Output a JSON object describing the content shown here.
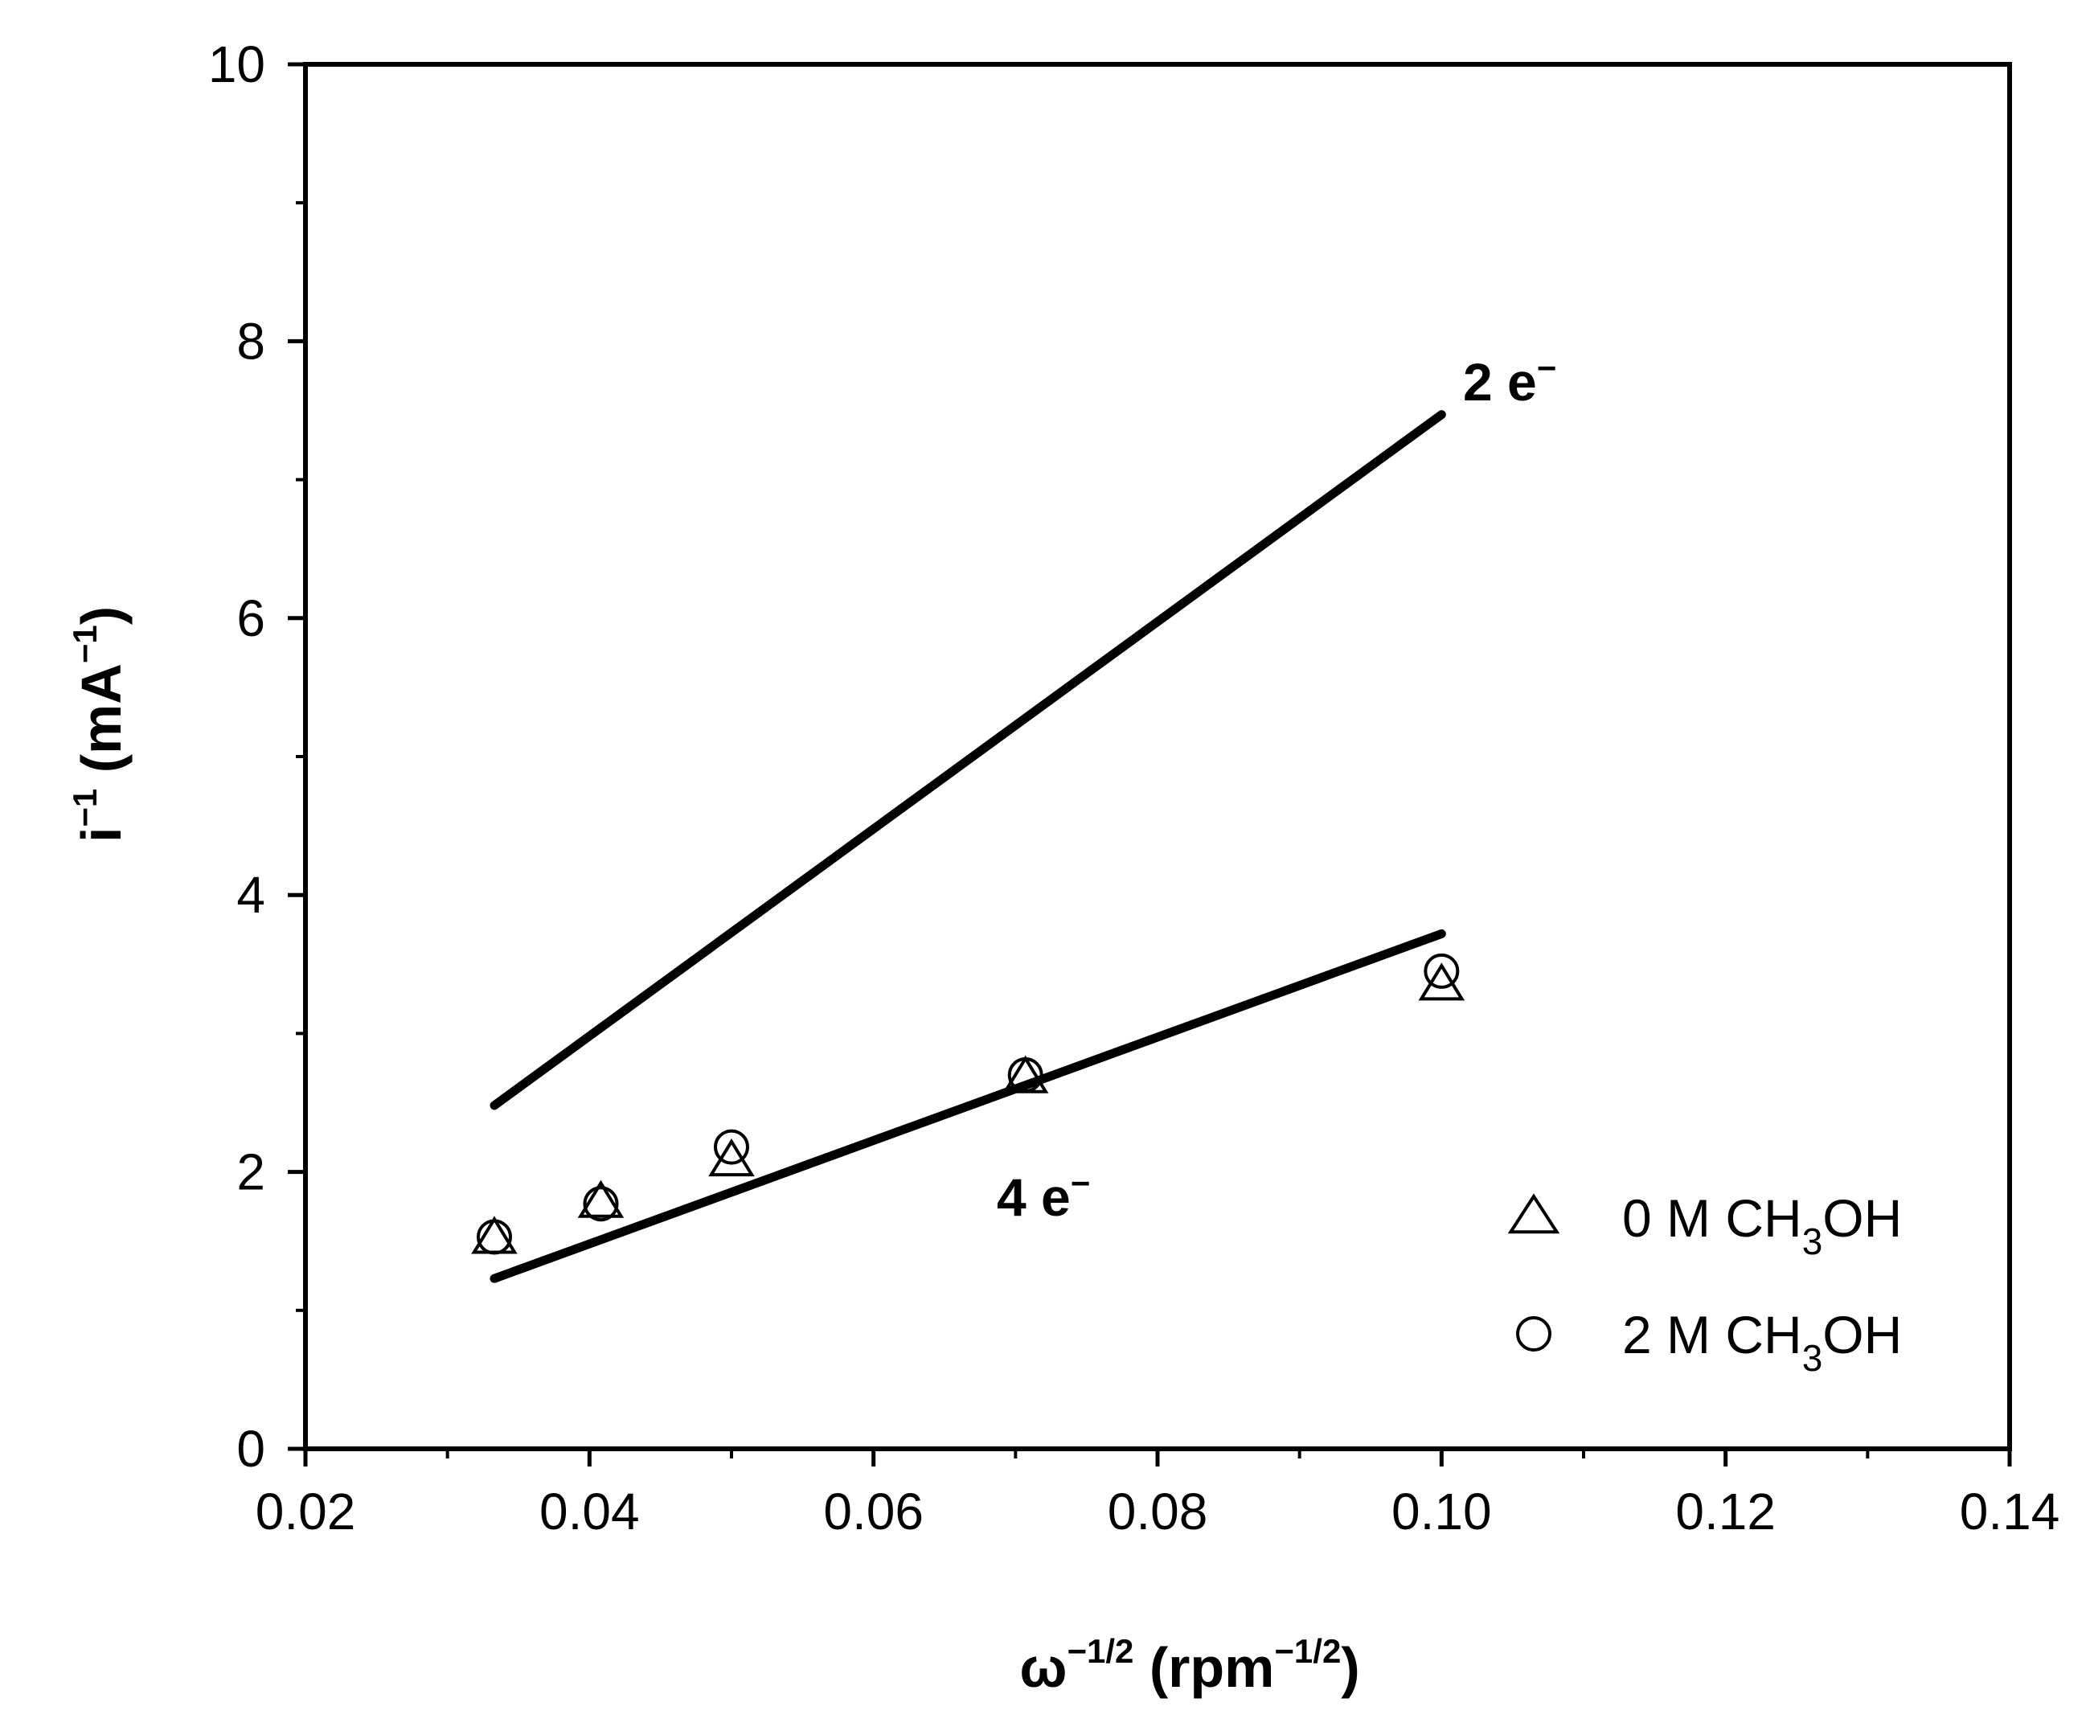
{
  "chart_data": {
    "type": "scatter",
    "title": "",
    "xlabel": {
      "base": "ω",
      "base_sup": "−1/2",
      "unit_open": " (rpm",
      "unit_sup": "−1/2",
      "unit_close": ")"
    },
    "ylabel": {
      "base": "i",
      "base_sup": "−1",
      "unit_open": " (mA",
      "unit_sup": "−1",
      "unit_close": ")"
    },
    "xlim": [
      0.02,
      0.14
    ],
    "ylim": [
      0,
      10
    ],
    "xticks": [
      "0.02",
      "0.04",
      "0.06",
      "0.08",
      "0.10",
      "0.12",
      "0.14"
    ],
    "yticks": [
      "0",
      "2",
      "4",
      "6",
      "8",
      "10"
    ],
    "grid": false,
    "lines": [
      {
        "name": "2 e−",
        "label_base": "2 e",
        "label_sup": "−",
        "x": [
          0.0333,
          0.1
        ],
        "y": [
          2.48,
          7.47
        ]
      },
      {
        "name": "4 e−",
        "label_base": "4 e",
        "label_sup": "−",
        "x": [
          0.0333,
          0.1
        ],
        "y": [
          1.23,
          3.72
        ]
      }
    ],
    "series": [
      {
        "name": "0 M CH3OH",
        "legend_pre": "0 M CH",
        "legend_sub": "3",
        "legend_post": "OH",
        "marker": "triangle",
        "x": [
          0.0333,
          0.0408,
          0.05,
          0.0707,
          0.1
        ],
        "y": [
          1.52,
          1.78,
          2.08,
          2.68,
          3.35
        ]
      },
      {
        "name": "2 M CH3OH",
        "legend_pre": "2 M CH",
        "legend_sub": "3",
        "legend_post": "OH",
        "marker": "circle",
        "x": [
          0.0333,
          0.0408,
          0.05,
          0.0707,
          0.1
        ],
        "y": [
          1.53,
          1.77,
          2.18,
          2.7,
          3.45
        ]
      }
    ],
    "legend_position": "bottom-right"
  }
}
